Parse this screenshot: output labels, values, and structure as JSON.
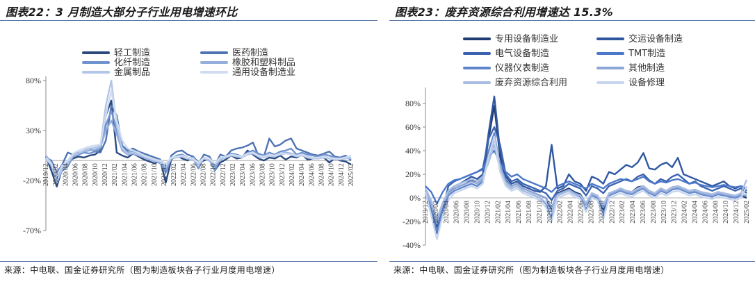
{
  "left": {
    "title": "图表22：3 月制造大部分子行业用电增速环比",
    "source": "来源：中电联、国金证券研究所（图为制造板块各子行业月度用电增速）",
    "chart_data": {
      "type": "line",
      "ylim": [
        -0.7,
        0.8
      ],
      "y_ticks": [
        0.8,
        0.3,
        -0.2,
        -0.7
      ],
      "y_tick_labels": [
        "80%",
        "30%",
        "-20%",
        "-70%"
      ],
      "x_tick_labels": [
        "2019/12",
        "2020/02",
        "2020/04",
        "2020/06",
        "2020/08",
        "2020/10",
        "2020/12",
        "2021/02",
        "2021/04",
        "2021/06",
        "2021/08",
        "2021/10",
        "2021/12",
        "2022/02",
        "2022/04",
        "2022/06",
        "2022/08",
        "2022/10",
        "2022/12",
        "2023/02",
        "2023/04",
        "2023/06",
        "2023/08",
        "2023/10",
        "2023/12",
        "2024/02",
        "2024/04",
        "2024/06",
        "2024/08",
        "2024/10",
        "2024/12",
        "2025/02"
      ],
      "colors": [
        "#2a4a7f",
        "#4f74b3",
        "#6f93cf",
        "#95aedb",
        "#b3c6e7",
        "#cfdcf1"
      ],
      "series": [
        {
          "name": "轻工制造",
          "values": [
            0.04,
            -0.1,
            -0.26,
            -0.08,
            -0.01,
            0.02,
            0.04,
            0.03,
            0.05,
            0.06,
            0.1,
            0.45,
            0.6,
            0.08,
            0.05,
            0.03,
            0.07,
            0.04,
            0.01,
            -0.01,
            -0.03,
            0.0,
            -0.22,
            0.01,
            0.05,
            0.02,
            0.0,
            0.04,
            -0.02,
            0.0,
            0.02,
            -0.1,
            -0.02,
            0.01,
            0.05,
            0.02,
            0.03,
            0.1,
            0.06,
            0.02,
            0.0,
            0.03,
            0.02,
            0.05,
            0.01,
            0.04,
            0.03,
            0.06,
            0.01,
            0.02,
            0.05,
            0.03,
            -0.02,
            0.02,
            0.0,
            -0.01,
            -0.04
          ]
        },
        {
          "name": "医药制造",
          "values": [
            0.03,
            0.0,
            -0.12,
            -0.04,
            0.08,
            0.06,
            0.07,
            0.1,
            0.12,
            0.09,
            0.08,
            0.2,
            0.55,
            0.45,
            0.15,
            0.1,
            0.12,
            0.09,
            0.07,
            0.05,
            0.03,
            0.01,
            -0.12,
            0.05,
            0.09,
            0.1,
            0.06,
            0.04,
            -0.03,
            0.06,
            0.04,
            -0.05,
            0.06,
            0.04,
            0.1,
            0.12,
            0.13,
            0.15,
            0.18,
            0.05,
            0.04,
            0.22,
            0.14,
            0.16,
            0.2,
            0.22,
            0.12,
            0.1,
            0.08,
            0.06,
            0.05,
            0.07,
            0.09,
            0.04,
            0.03,
            0.05,
            0.0
          ]
        },
        {
          "name": "化纤制造",
          "values": [
            0.02,
            -0.05,
            -0.2,
            -0.1,
            -0.06,
            0.04,
            0.06,
            0.08,
            0.07,
            0.09,
            0.12,
            0.35,
            0.5,
            0.3,
            0.12,
            0.08,
            0.09,
            0.06,
            0.04,
            0.02,
            0.0,
            -0.03,
            -0.12,
            0.02,
            0.05,
            0.06,
            0.03,
            0.02,
            -0.08,
            0.03,
            0.01,
            -0.1,
            0.02,
            0.04,
            0.07,
            0.06,
            0.04,
            0.08,
            0.1,
            0.07,
            0.05,
            0.08,
            0.06,
            0.09,
            0.1,
            0.12,
            0.06,
            0.08,
            0.06,
            0.05,
            0.04,
            0.06,
            0.05,
            0.03,
            0.02,
            0.04,
            0.01
          ]
        },
        {
          "name": "橡胶和塑料制品",
          "values": [
            0.05,
            -0.02,
            -0.18,
            -0.06,
            -0.02,
            0.06,
            0.08,
            0.09,
            0.1,
            0.11,
            0.13,
            0.3,
            0.4,
            0.26,
            0.1,
            0.06,
            0.07,
            0.05,
            0.03,
            0.01,
            -0.01,
            0.0,
            -0.08,
            0.03,
            0.04,
            0.05,
            0.02,
            0.03,
            -0.04,
            0.02,
            0.0,
            -0.06,
            0.01,
            0.03,
            0.06,
            0.05,
            0.04,
            0.07,
            0.08,
            0.05,
            0.04,
            0.06,
            0.05,
            0.07,
            0.08,
            0.07,
            0.05,
            0.06,
            0.04,
            0.03,
            0.02,
            0.04,
            0.03,
            0.02,
            0.01,
            0.03,
            0.02
          ]
        },
        {
          "name": "金属制品",
          "values": [
            0.01,
            -0.04,
            -0.22,
            -0.08,
            -0.03,
            0.05,
            0.07,
            0.1,
            0.12,
            0.13,
            0.15,
            0.55,
            0.8,
            0.35,
            0.12,
            0.07,
            0.08,
            0.06,
            0.04,
            0.02,
            0.0,
            -0.02,
            -0.06,
            0.02,
            0.03,
            0.04,
            0.02,
            0.01,
            -0.04,
            0.02,
            0.01,
            -0.04,
            0.02,
            0.03,
            0.05,
            0.04,
            0.03,
            0.06,
            0.07,
            0.04,
            0.03,
            0.05,
            0.04,
            0.06,
            0.07,
            0.06,
            0.04,
            0.05,
            0.03,
            0.02,
            0.02,
            0.03,
            0.02,
            0.01,
            0.01,
            0.02,
            0.03
          ]
        },
        {
          "name": "通用设备制造业",
          "values": [
            0.03,
            -0.03,
            -0.15,
            -0.05,
            0.0,
            0.07,
            0.1,
            0.12,
            0.14,
            0.15,
            0.16,
            0.45,
            0.7,
            0.4,
            0.2,
            0.12,
            0.1,
            0.08,
            0.05,
            0.03,
            0.01,
            0.0,
            -0.03,
            0.03,
            0.04,
            0.05,
            0.03,
            0.02,
            -0.02,
            0.03,
            0.02,
            -0.03,
            0.03,
            0.04,
            0.06,
            0.05,
            0.04,
            0.07,
            0.08,
            0.05,
            0.04,
            0.06,
            0.05,
            0.07,
            0.07,
            0.06,
            0.05,
            0.06,
            0.04,
            0.03,
            0.03,
            0.04,
            0.03,
            0.02,
            0.02,
            0.03,
            0.05
          ]
        }
      ]
    }
  },
  "right": {
    "title": "图表23：废弃资源综合利用增速达 15.3%",
    "source": "来源：中电联、国金证券研究所（图为制造板块各子行业月度用电增速）",
    "chart_data": {
      "type": "line",
      "ylim": [
        -0.4,
        0.9
      ],
      "y_ticks": [
        0.8,
        0.6,
        0.4,
        0.2,
        0.0,
        -0.2,
        -0.4
      ],
      "y_tick_labels": [
        "80%",
        "60%",
        "40%",
        "20%",
        "0%",
        "-20%",
        "-40%"
      ],
      "x_tick_labels": [
        "2019/12",
        "2020/02",
        "2020/04",
        "2020/06",
        "2020/08",
        "2020/10",
        "2020/12",
        "2021/02",
        "2021/04",
        "2021/06",
        "2021/08",
        "2021/10",
        "2021/12",
        "2022/02",
        "2022/04",
        "2022/06",
        "2022/08",
        "2022/10",
        "2022/12",
        "2023/02",
        "2023/04",
        "2023/06",
        "2023/08",
        "2023/10",
        "2023/12",
        "2024/02",
        "2024/04",
        "2024/06",
        "2024/08",
        "2024/10",
        "2024/12",
        "2025/02"
      ],
      "colors": [
        "#1f3d73",
        "#2f57a0",
        "#3b63b0",
        "#4c78c8",
        "#5f86cc",
        "#8ca6d6",
        "#a9bde3",
        "#c7d5ee"
      ],
      "series": [
        {
          "name": "专用设备制造业",
          "values": [
            0.05,
            -0.1,
            -0.25,
            -0.08,
            0.05,
            0.08,
            0.1,
            0.12,
            0.15,
            0.14,
            0.18,
            0.5,
            0.78,
            0.35,
            0.15,
            0.1,
            0.12,
            0.08,
            0.06,
            0.04,
            0.02,
            0.0,
            -0.1,
            0.04,
            0.06,
            0.08,
            0.05,
            0.03,
            -0.05,
            0.04,
            0.02,
            -0.1,
            0.04,
            0.05,
            0.08,
            0.06,
            0.05,
            0.09,
            0.1,
            0.06,
            0.04,
            0.08,
            0.06,
            0.09,
            0.1,
            0.08,
            0.06,
            0.07,
            0.05,
            0.04,
            0.03,
            0.05,
            0.04,
            0.02,
            0.01,
            0.02,
            0.0
          ]
        },
        {
          "name": "交运设备制造",
          "values": [
            0.03,
            -0.05,
            -0.2,
            -0.05,
            0.06,
            0.1,
            0.12,
            0.15,
            0.18,
            0.16,
            0.2,
            0.55,
            0.86,
            0.4,
            0.18,
            0.12,
            0.14,
            0.1,
            0.08,
            0.06,
            0.05,
            0.1,
            0.45,
            0.08,
            0.1,
            0.2,
            0.14,
            0.12,
            0.06,
            0.18,
            0.16,
            0.12,
            0.22,
            0.2,
            0.24,
            0.28,
            0.26,
            0.3,
            0.38,
            0.25,
            0.24,
            0.28,
            0.3,
            0.26,
            0.34,
            0.2,
            0.18,
            0.16,
            0.14,
            0.12,
            0.1,
            0.12,
            0.14,
            0.1,
            0.08,
            0.1,
            0.06
          ]
        },
        {
          "name": "电气设备制造",
          "values": [
            0.02,
            -0.08,
            -0.3,
            -0.1,
            0.1,
            0.14,
            0.16,
            0.18,
            0.2,
            0.22,
            0.25,
            0.5,
            0.6,
            0.45,
            0.2,
            0.14,
            0.16,
            0.12,
            0.1,
            0.08,
            0.06,
            0.04,
            -0.02,
            0.06,
            0.08,
            0.12,
            0.1,
            0.08,
            0.02,
            0.1,
            0.08,
            0.04,
            0.1,
            0.12,
            0.14,
            0.16,
            0.14,
            0.18,
            0.2,
            0.15,
            0.12,
            0.16,
            0.14,
            0.18,
            0.2,
            0.16,
            0.12,
            0.14,
            0.1,
            0.08,
            0.06,
            0.08,
            0.1,
            0.08,
            0.06,
            0.08,
            0.04
          ]
        },
        {
          "name": "TMT制造",
          "values": [
            0.1,
            0.05,
            -0.05,
            0.05,
            0.12,
            0.15,
            0.16,
            0.18,
            0.2,
            0.22,
            0.24,
            0.35,
            0.4,
            0.3,
            0.22,
            0.18,
            0.2,
            0.16,
            0.14,
            0.12,
            0.1,
            0.08,
            0.05,
            0.1,
            0.12,
            0.14,
            0.12,
            0.1,
            0.08,
            0.12,
            0.1,
            0.08,
            0.12,
            0.14,
            0.16,
            0.15,
            0.14,
            0.16,
            0.18,
            0.14,
            0.12,
            0.14,
            0.13,
            0.15,
            0.16,
            0.14,
            0.12,
            0.13,
            0.11,
            0.1,
            0.09,
            0.1,
            0.11,
            0.1,
            0.09,
            0.1,
            0.08
          ]
        },
        {
          "name": "仪器仪表制造",
          "values": [
            0.04,
            -0.12,
            -0.28,
            -0.12,
            0.02,
            0.06,
            0.08,
            0.1,
            0.12,
            0.1,
            0.14,
            0.4,
            0.55,
            0.25,
            0.12,
            0.08,
            0.1,
            0.06,
            0.04,
            0.02,
            0.0,
            -0.05,
            -0.18,
            0.02,
            0.04,
            0.06,
            0.03,
            0.01,
            -0.1,
            0.02,
            0.0,
            -0.15,
            0.02,
            0.04,
            0.06,
            0.04,
            0.03,
            0.06,
            0.08,
            0.04,
            0.02,
            0.06,
            0.04,
            0.07,
            0.08,
            0.06,
            0.04,
            0.05,
            0.03,
            0.02,
            0.01,
            0.03,
            0.02,
            0.01,
            0.0,
            0.02,
            0.02
          ]
        },
        {
          "name": "其他制造",
          "values": [
            0.06,
            -0.06,
            -0.22,
            -0.06,
            0.04,
            0.08,
            0.1,
            0.12,
            0.14,
            0.12,
            0.16,
            0.35,
            0.5,
            0.28,
            0.14,
            0.1,
            0.12,
            0.08,
            0.06,
            0.04,
            0.02,
            0.0,
            -0.08,
            0.03,
            0.05,
            0.07,
            0.04,
            0.02,
            -0.06,
            0.03,
            0.01,
            -0.08,
            0.03,
            0.05,
            0.07,
            0.05,
            0.04,
            0.07,
            0.09,
            0.05,
            0.03,
            0.07,
            0.05,
            0.08,
            0.09,
            0.07,
            0.05,
            0.06,
            0.04,
            0.03,
            0.02,
            0.04,
            0.03,
            0.02,
            0.01,
            0.03,
            0.02
          ]
        },
        {
          "name": "废弃资源综合利用",
          "values": [
            0.08,
            -0.02,
            -0.18,
            -0.04,
            0.06,
            0.1,
            0.12,
            0.14,
            0.16,
            0.14,
            0.18,
            0.3,
            0.45,
            0.24,
            0.12,
            0.08,
            0.1,
            0.06,
            0.04,
            0.02,
            0.0,
            -0.04,
            -0.12,
            0.02,
            0.04,
            0.06,
            0.03,
            0.02,
            -0.04,
            0.04,
            0.02,
            -0.06,
            0.04,
            0.06,
            0.08,
            0.06,
            0.05,
            0.08,
            0.1,
            0.06,
            0.04,
            0.08,
            0.06,
            0.09,
            0.1,
            0.08,
            0.06,
            0.07,
            0.05,
            0.04,
            0.03,
            0.05,
            0.04,
            0.03,
            0.02,
            0.04,
            0.153
          ]
        },
        {
          "name": "设备修理",
          "values": [
            0.05,
            -0.15,
            -0.35,
            -0.15,
            -0.02,
            0.04,
            0.06,
            0.08,
            0.1,
            0.08,
            0.12,
            0.35,
            0.52,
            0.22,
            0.1,
            0.06,
            0.08,
            0.04,
            0.02,
            0.0,
            -0.02,
            -0.08,
            -0.2,
            0.0,
            0.02,
            0.04,
            0.01,
            -0.01,
            -0.12,
            0.0,
            -0.02,
            -0.18,
            0.0,
            0.02,
            0.04,
            0.02,
            0.01,
            0.04,
            0.06,
            0.02,
            0.0,
            0.04,
            0.02,
            0.05,
            0.06,
            0.04,
            0.02,
            0.03,
            0.01,
            0.0,
            -0.01,
            0.01,
            0.0,
            -0.01,
            -0.02,
            0.0,
            0.1
          ]
        }
      ]
    }
  }
}
